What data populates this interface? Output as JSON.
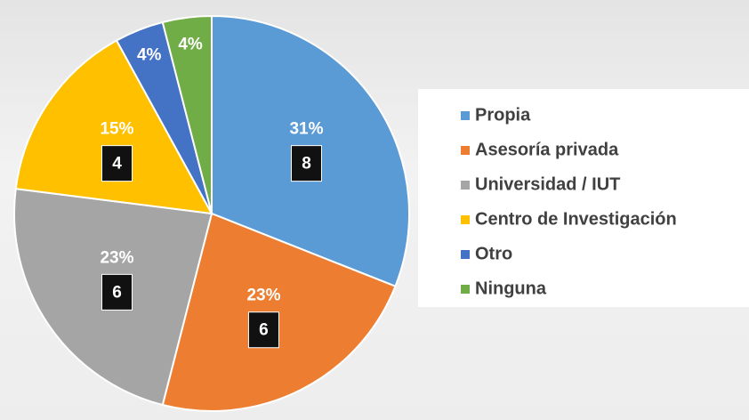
{
  "chart_data": {
    "type": "pie",
    "categories": [
      "Propia",
      "Asesoría privada",
      "Universidad / IUT",
      "Centro de Investigación",
      "Otro",
      "Ninguna"
    ],
    "values": [
      31,
      23,
      23,
      15,
      4,
      4
    ],
    "value_labels": [
      "31%",
      "23%",
      "23%",
      "15%",
      "4%",
      "4%"
    ],
    "counts": [
      8,
      6,
      6,
      4,
      null,
      null
    ],
    "colors": [
      "#5b9bd5",
      "#ed7d31",
      "#a5a5a5",
      "#ffc000",
      "#4472c4",
      "#70ad47"
    ],
    "legend": "right"
  }
}
